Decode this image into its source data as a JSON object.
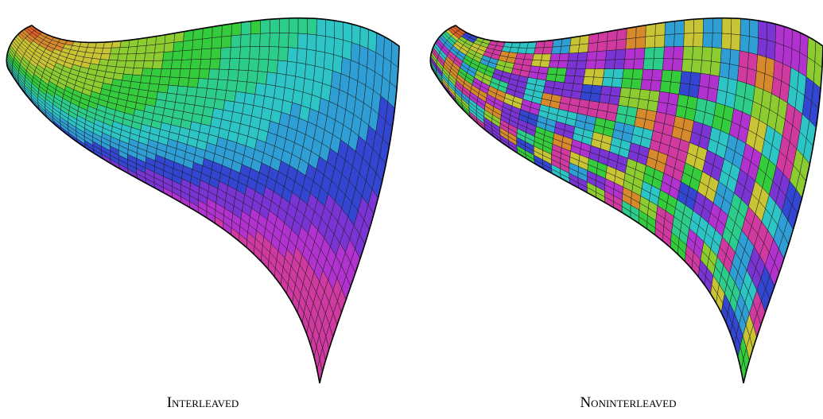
{
  "panels": [
    {
      "label": "Interleaved"
    },
    {
      "label": "Noninterleaved"
    }
  ]
}
